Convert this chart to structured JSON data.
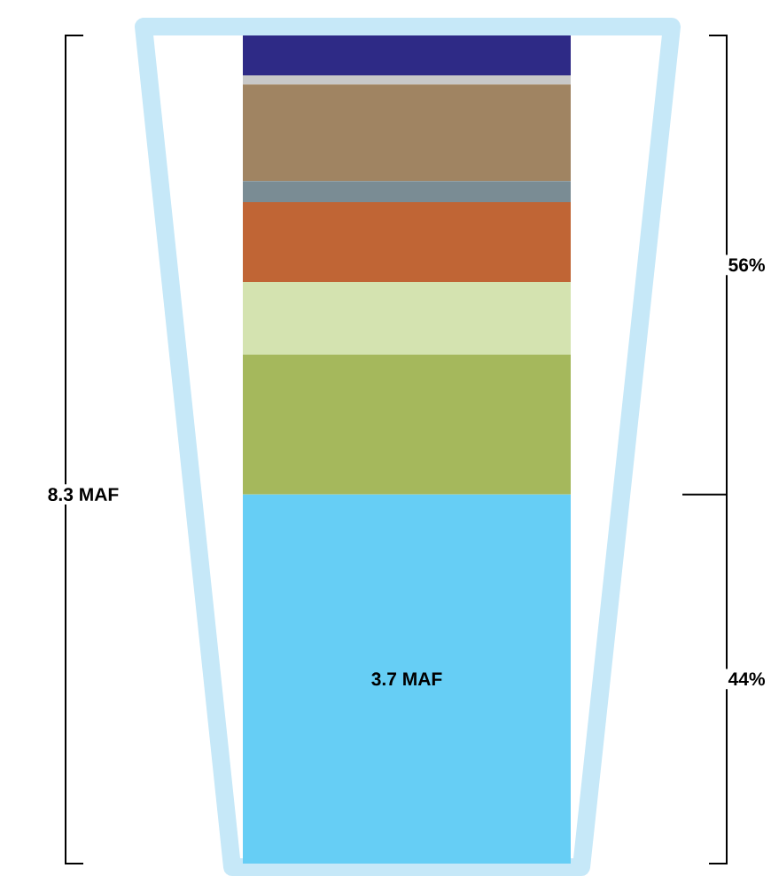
{
  "chart_data": {
    "type": "bar",
    "stacked": true,
    "categories": [
      null
    ],
    "series": [
      {
        "color": "#66cef5",
        "values": [
          3.7
        ],
        "value_labels": [
          "3.7 MAF"
        ]
      },
      {
        "color": "#a5b85c",
        "values": [
          1.4
        ]
      },
      {
        "color": "#d4e3b0",
        "values": [
          0.73
        ]
      },
      {
        "color": "#c06535",
        "values": [
          0.8
        ]
      },
      {
        "color": "#7a8c94",
        "values": [
          0.21
        ]
      },
      {
        "color": "#a08462",
        "values": [
          0.97
        ]
      },
      {
        "color": "#c8c8c8",
        "values": [
          0.09
        ]
      },
      {
        "color": "#2e2a86",
        "values": [
          0.4
        ]
      }
    ],
    "annotations": [
      "8.3 MAF",
      "56%",
      "44%"
    ]
  }
}
